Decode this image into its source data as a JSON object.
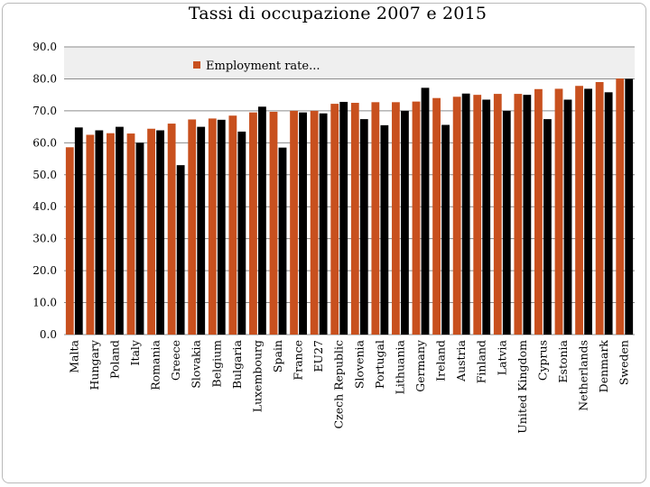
{
  "chart_data": {
    "type": "bar",
    "title": "Tassi di occupazione 2007 e 2015",
    "categories": [
      "Malta",
      "Hungary",
      "Poland",
      "Italy",
      "Romania",
      "Greece",
      "Slovakia",
      "Belgium",
      "Bulgaria",
      "Luxembourg",
      "Spain",
      "France",
      "EU27",
      "Czech Republic",
      "Slovenia",
      "Portugal",
      "Lithuania",
      "Germany",
      "Ireland",
      "Austria",
      "Finland",
      "Latvia",
      "United Kingdom",
      "Cyprus",
      "Estonia",
      "Netherlands",
      "Denmark",
      "Sweden"
    ],
    "series": [
      {
        "name": "Employment rate...",
        "color": "#c8501e",
        "values": [
          58.6,
          62.5,
          63.0,
          62.9,
          64.4,
          66.0,
          67.3,
          67.6,
          68.5,
          69.5,
          69.7,
          70.0,
          70.0,
          72.2,
          72.5,
          72.7,
          72.7,
          72.9,
          74.0,
          74.4,
          75.0,
          75.3,
          75.3,
          76.8,
          76.9,
          77.8,
          79.0,
          80.1
        ]
      },
      {
        "color": "#000000",
        "values": [
          64.8,
          63.9,
          65.0,
          60.0,
          63.9,
          53.0,
          65.0,
          67.2,
          63.5,
          71.3,
          58.5,
          69.5,
          69.2,
          72.8,
          67.4,
          65.5,
          70.0,
          77.2,
          65.6,
          75.4,
          73.5,
          70.0,
          75.0,
          67.4,
          73.5,
          76.9,
          75.8,
          80.0
        ]
      }
    ],
    "ylim": [
      0,
      90
    ],
    "yticks": [
      "0.0",
      "10.0",
      "20.0",
      "30.0",
      "40.0",
      "50.0",
      "60.0",
      "70.0",
      "80.0",
      "90.0"
    ],
    "grid": true,
    "legend_position": "top-left"
  },
  "colors": {
    "band": "#efefef",
    "gridline": "#8c8c8c"
  }
}
